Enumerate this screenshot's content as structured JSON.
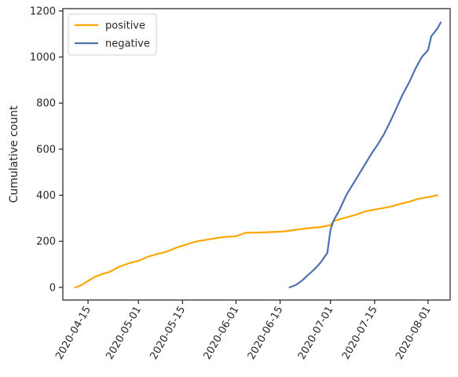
{
  "chart_data": {
    "type": "line",
    "title": "",
    "xlabel": "",
    "ylabel": "Cumulative count",
    "x_axis": {
      "kind": "date",
      "range": [
        "2020-04-07",
        "2020-08-08"
      ],
      "ticks": [
        "2020-04-15",
        "2020-05-01",
        "2020-05-15",
        "2020-06-01",
        "2020-06-15",
        "2020-07-01",
        "2020-07-15",
        "2020-08-01"
      ]
    },
    "y_axis": {
      "range": [
        -55,
        1210
      ],
      "ticks": [
        0,
        200,
        400,
        600,
        800,
        1000,
        1200
      ]
    },
    "grid": false,
    "legend": {
      "placement": "top-left"
    },
    "series": [
      {
        "name": "positive",
        "color": "#FFA500",
        "x": [
          "2020-04-11",
          "2020-04-13",
          "2020-04-15",
          "2020-04-17",
          "2020-04-19",
          "2020-04-22",
          "2020-04-25",
          "2020-04-28",
          "2020-05-01",
          "2020-05-04",
          "2020-05-07",
          "2020-05-10",
          "2020-05-13",
          "2020-05-16",
          "2020-05-19",
          "2020-05-22",
          "2020-05-25",
          "2020-05-28",
          "2020-06-01",
          "2020-06-04",
          "2020-06-08",
          "2020-06-12",
          "2020-06-16",
          "2020-06-20",
          "2020-06-24",
          "2020-06-28",
          "2020-07-01",
          "2020-07-02",
          "2020-07-05",
          "2020-07-09",
          "2020-07-12",
          "2020-07-16",
          "2020-07-20",
          "2020-07-23",
          "2020-07-26",
          "2020-07-29",
          "2020-08-01",
          "2020-08-04"
        ],
        "y": [
          0,
          10,
          28,
          45,
          55,
          68,
          90,
          105,
          115,
          133,
          145,
          155,
          172,
          185,
          198,
          205,
          212,
          218,
          222,
          237,
          238,
          240,
          242,
          250,
          257,
          262,
          270,
          288,
          300,
          315,
          330,
          340,
          350,
          362,
          372,
          385,
          392,
          400
        ]
      },
      {
        "name": "negative",
        "color": "#4C72B0",
        "x": [
          "2020-06-18",
          "2020-06-20",
          "2020-06-22",
          "2020-06-24",
          "2020-06-26",
          "2020-06-28",
          "2020-06-30",
          "2020-07-01",
          "2020-07-02",
          "2020-07-04",
          "2020-07-06",
          "2020-07-08",
          "2020-07-10",
          "2020-07-12",
          "2020-07-14",
          "2020-07-16",
          "2020-07-18",
          "2020-07-20",
          "2020-07-22",
          "2020-07-24",
          "2020-07-26",
          "2020-07-28",
          "2020-07-30",
          "2020-08-01",
          "2020-08-02",
          "2020-08-04",
          "2020-08-05"
        ],
        "y": [
          0,
          10,
          30,
          55,
          80,
          110,
          150,
          250,
          290,
          340,
          400,
          445,
          490,
          535,
          580,
          620,
          665,
          720,
          780,
          840,
          890,
          950,
          1000,
          1030,
          1090,
          1125,
          1150
        ]
      }
    ]
  }
}
